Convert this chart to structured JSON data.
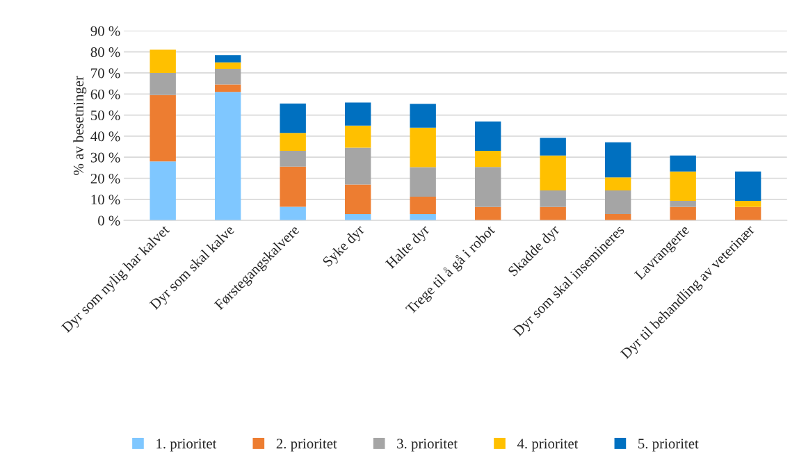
{
  "chart_data": {
    "type": "bar",
    "stacked": true,
    "ylabel": "% av besetninger",
    "categories": [
      "Dyr som nylig har kalvet",
      "Dyr som skal kalve",
      "Førstegangskalvere",
      "Syke dyr",
      "Halte dyr",
      "Trege til å gå i robot",
      "Skadde dyr",
      "Dyr som skal insemineres",
      "Lavrangerte",
      "Dyr til behandling av veterinær"
    ],
    "series": [
      {
        "name": "1. prioritet",
        "color": "#7fc7ff",
        "values": [
          28,
          61,
          6.5,
          3,
          3,
          0,
          0,
          0,
          0,
          0
        ]
      },
      {
        "name": "2. prioritet",
        "color": "#ed7d31",
        "values": [
          31.5,
          3.5,
          19,
          14,
          8.3,
          6.4,
          6.4,
          3,
          6.4,
          6.4
        ]
      },
      {
        "name": "3. prioritet",
        "color": "#a5a5a5",
        "values": [
          10.5,
          7.5,
          7.5,
          17.5,
          14,
          19,
          7.8,
          11.2,
          2.9,
          0
        ]
      },
      {
        "name": "4. prioritet",
        "color": "#ffc000",
        "values": [
          11,
          3,
          8.5,
          10.5,
          18.7,
          7.6,
          16.6,
          6.2,
          13.9,
          2.9
        ]
      },
      {
        "name": "5. prioritet",
        "color": "#0070c0",
        "values": [
          0,
          3.5,
          14,
          11,
          11.3,
          14,
          8.4,
          16.7,
          7.6,
          13.9
        ]
      }
    ],
    "ylim": [
      0,
      90
    ],
    "yticks": [
      {
        "value": 0,
        "label": "0 %"
      },
      {
        "value": 10,
        "label": "10 %"
      },
      {
        "value": 20,
        "label": "20 %"
      },
      {
        "value": 30,
        "label": "30 %"
      },
      {
        "value": 40,
        "label": "40 %"
      },
      {
        "value": 50,
        "label": "50 %"
      },
      {
        "value": 60,
        "label": "60 %"
      },
      {
        "value": 70,
        "label": "70 %"
      },
      {
        "value": 80,
        "label": "80 %"
      },
      {
        "value": 90,
        "label": "90 %"
      }
    ],
    "grid": "y",
    "legend": "bottom"
  }
}
